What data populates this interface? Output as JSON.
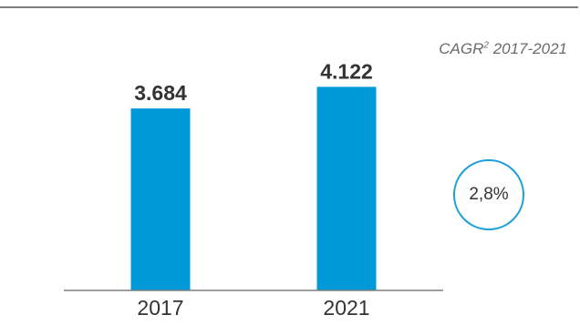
{
  "chart_data": {
    "type": "bar",
    "title": "",
    "xlabel": "",
    "ylabel": "",
    "categories": [
      "2017",
      "2021"
    ],
    "values": [
      3684,
      4122
    ],
    "value_labels": [
      "3.684",
      "4.122"
    ],
    "ylim": [
      0,
      4400
    ],
    "grid": false,
    "annotation": {
      "label_main": "CAGR",
      "label_sup": "2",
      "label_period": " 2017-2021",
      "value": "2,8%"
    }
  },
  "colors": {
    "bar": "#0099d8",
    "circle_border": "#1a9fd8",
    "text": "#333333",
    "muted_text": "#6b6b6b",
    "axis": "#7f7f7f"
  }
}
